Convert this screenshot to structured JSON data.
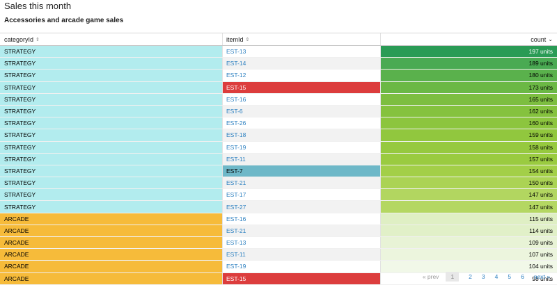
{
  "page": {
    "title": "Sales this month",
    "subtitle": "Accessories and arcade game sales"
  },
  "table": {
    "columns": [
      {
        "label": "categoryId",
        "sort_icon": "sort-both-icon"
      },
      {
        "label": "itemId",
        "sort_icon": "sort-both-icon"
      },
      {
        "label": "count",
        "sort_icon": "sort-desc-icon"
      }
    ],
    "rows": [
      {
        "category": "STRATEGY",
        "item": "EST-13",
        "count": "197 units"
      },
      {
        "category": "STRATEGY",
        "item": "EST-14",
        "count": "189 units"
      },
      {
        "category": "STRATEGY",
        "item": "EST-12",
        "count": "180 units"
      },
      {
        "category": "STRATEGY",
        "item": "EST-15",
        "count": "173 units"
      },
      {
        "category": "STRATEGY",
        "item": "EST-16",
        "count": "165 units"
      },
      {
        "category": "STRATEGY",
        "item": "EST-6",
        "count": "162 units"
      },
      {
        "category": "STRATEGY",
        "item": "EST-26",
        "count": "160 units"
      },
      {
        "category": "STRATEGY",
        "item": "EST-18",
        "count": "159 units"
      },
      {
        "category": "STRATEGY",
        "item": "EST-19",
        "count": "158 units"
      },
      {
        "category": "STRATEGY",
        "item": "EST-11",
        "count": "157 units"
      },
      {
        "category": "STRATEGY",
        "item": "EST-7",
        "count": "154 units"
      },
      {
        "category": "STRATEGY",
        "item": "EST-21",
        "count": "150 units"
      },
      {
        "category": "STRATEGY",
        "item": "EST-17",
        "count": "147 units"
      },
      {
        "category": "STRATEGY",
        "item": "EST-27",
        "count": "147 units"
      },
      {
        "category": "ARCADE",
        "item": "EST-16",
        "count": "115 units"
      },
      {
        "category": "ARCADE",
        "item": "EST-21",
        "count": "114 units"
      },
      {
        "category": "ARCADE",
        "item": "EST-13",
        "count": "109 units"
      },
      {
        "category": "ARCADE",
        "item": "EST-11",
        "count": "107 units"
      },
      {
        "category": "ARCADE",
        "item": "EST-19",
        "count": "104 units"
      },
      {
        "category": "ARCADE",
        "item": "EST-15",
        "count": "98 units"
      }
    ]
  },
  "colors": {
    "strategy": "#b2ecee",
    "arcade": "#f6bb3a",
    "highlight_red": "#dc3d3d",
    "highlight_teal": "#6eb8c8",
    "link": "#2a7fc0",
    "row_alt": "#f2f2f2",
    "count_scale": [
      "#2a9b55",
      "#4aaa53",
      "#5ab14c",
      "#6bb845",
      "#7dbe40",
      "#85c23e",
      "#8cc53e",
      "#91c73e",
      "#96c93f",
      "#9acb40",
      "#a3cf48",
      "#abd354",
      "#b2d660",
      "#b4d762",
      "#dfefc4",
      "#e1f0c8",
      "#e8f3d6",
      "#ecf5dd",
      "#f1f8e8",
      "#ffffff"
    ]
  },
  "pagination": {
    "prev": "« prev",
    "pages": [
      "1",
      "2",
      "3",
      "4",
      "5",
      "6"
    ],
    "current": "1",
    "next": "next »"
  }
}
